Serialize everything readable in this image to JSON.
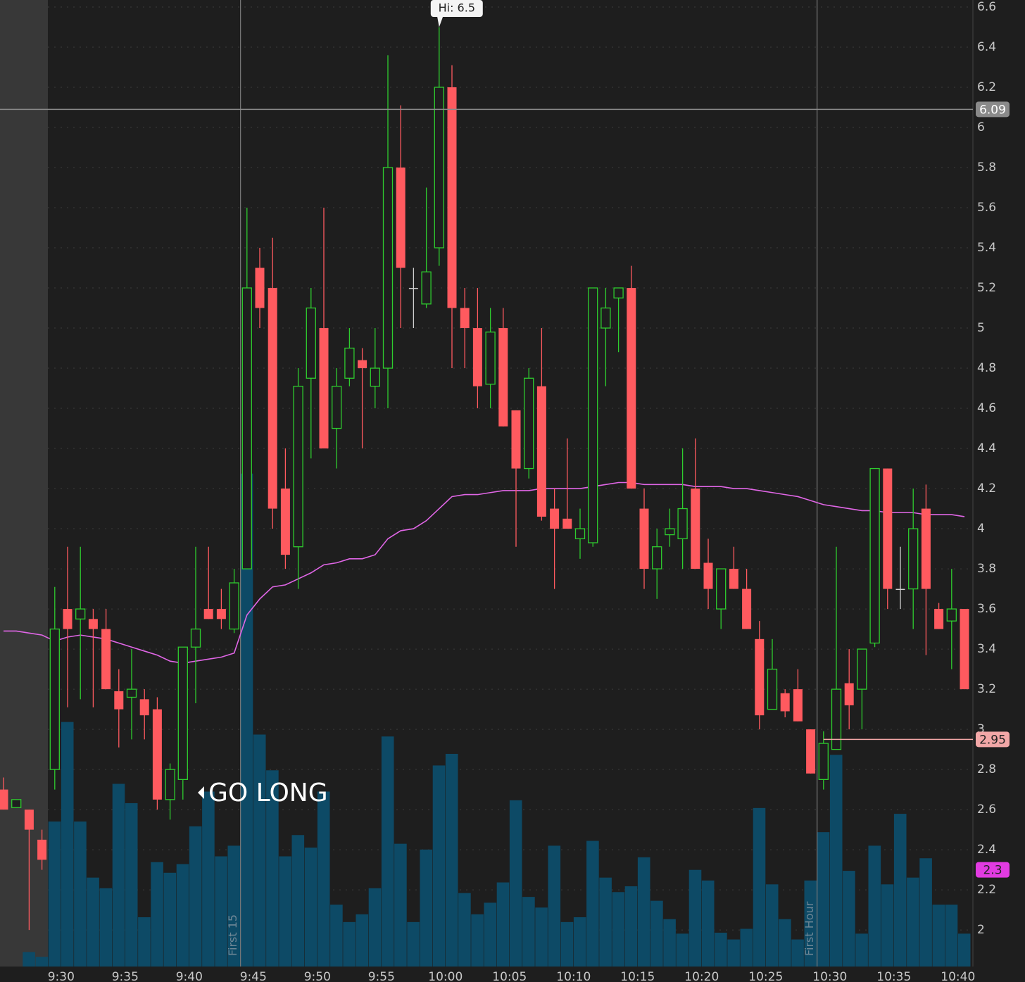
{
  "chart_data": {
    "type": "candlestick",
    "categories": [
      null,
      null,
      null,
      null,
      "9:30",
      null,
      null,
      null,
      null,
      "9:35",
      null,
      null,
      null,
      null,
      "9:40",
      null,
      null,
      null,
      null,
      "9:45",
      null,
      null,
      null,
      null,
      "9:50",
      null,
      null,
      null,
      null,
      "9:55",
      null,
      null,
      null,
      null,
      "10:00",
      null,
      null,
      null,
      null,
      "10:05",
      null,
      null,
      null,
      null,
      "10:10",
      null,
      null,
      null,
      null,
      "10:15",
      null,
      null,
      null,
      null,
      "10:20",
      null,
      null,
      null,
      null,
      "10:25",
      null,
      null,
      null,
      null,
      "10:30",
      null,
      null,
      null,
      null,
      "10:35",
      null,
      null,
      null,
      null,
      "10:40",
      null
    ],
    "open": [
      2.7,
      2.61,
      2.6,
      2.45,
      2.8,
      3.6,
      3.55,
      3.55,
      3.5,
      3.19,
      3.16,
      3.15,
      3.1,
      2.65,
      2.75,
      3.41,
      3.6,
      3.6,
      3.5,
      3.8,
      5.3,
      5.2,
      4.2,
      3.91,
      4.75,
      5.0,
      4.5,
      4.75,
      4.84,
      4.71,
      4.8,
      5.8,
      5.2,
      5.12,
      5.4,
      6.2,
      5.1,
      5.0,
      4.72,
      5.0,
      4.59,
      4.3,
      4.71,
      4.1,
      4.05,
      3.95,
      3.93,
      5.0,
      5.15,
      5.2,
      4.1,
      3.8,
      3.97,
      3.95,
      4.2,
      3.83,
      3.6,
      3.8,
      3.7,
      3.45,
      3.1,
      3.18,
      3.2,
      3.0,
      2.75,
      2.9,
      3.23,
      3.2,
      3.43,
      4.3,
      3.7,
      3.7,
      4.1,
      3.6,
      3.54,
      3.6
    ],
    "high": [
      2.76,
      2.65,
      2.6,
      2.5,
      3.71,
      3.91,
      3.91,
      3.6,
      3.6,
      3.3,
      3.4,
      3.2,
      3.16,
      2.83,
      3.41,
      3.91,
      3.91,
      3.7,
      3.8,
      5.6,
      5.4,
      5.45,
      4.4,
      4.8,
      5.2,
      5.6,
      4.8,
      5.0,
      4.9,
      5.0,
      6.36,
      6.11,
      5.3,
      5.7,
      6.5,
      6.31,
      5.2,
      5.2,
      5.1,
      5.1,
      4.59,
      4.8,
      5.0,
      4.2,
      4.45,
      4.1,
      5.2,
      5.2,
      5.2,
      5.31,
      4.2,
      4.0,
      4.1,
      4.4,
      4.45,
      3.95,
      3.8,
      3.91,
      3.8,
      3.54,
      3.45,
      3.2,
      3.3,
      3.0,
      2.99,
      3.91,
      3.4,
      3.4,
      4.3,
      4.3,
      3.91,
      4.2,
      4.22,
      3.63,
      3.8,
      3.6
    ],
    "low": [
      2.6,
      2.61,
      2.0,
      2.3,
      2.7,
      3.11,
      3.15,
      3.11,
      3.2,
      2.91,
      2.95,
      2.95,
      2.6,
      2.55,
      2.65,
      3.13,
      3.55,
      3.5,
      3.48,
      3.8,
      5.0,
      4.0,
      3.8,
      3.7,
      4.35,
      4.4,
      4.3,
      4.71,
      4.4,
      4.6,
      4.6,
      5.0,
      5.0,
      5.1,
      5.31,
      4.8,
      4.8,
      4.6,
      4.6,
      4.51,
      3.91,
      4.25,
      4.04,
      3.7,
      4.0,
      3.85,
      3.91,
      4.71,
      4.88,
      4.2,
      3.7,
      3.65,
      3.91,
      3.8,
      3.8,
      3.6,
      3.5,
      3.7,
      3.5,
      3.0,
      3.1,
      3.06,
      3.04,
      2.78,
      2.7,
      2.9,
      3.0,
      3.0,
      3.41,
      3.6,
      3.6,
      3.5,
      3.37,
      3.5,
      3.3,
      3.2
    ],
    "close": [
      2.6,
      2.65,
      2.5,
      2.35,
      3.5,
      3.5,
      3.6,
      3.5,
      3.2,
      3.1,
      3.2,
      3.07,
      2.65,
      2.8,
      3.41,
      3.5,
      3.55,
      3.55,
      3.73,
      5.2,
      5.1,
      4.1,
      3.87,
      4.71,
      5.1,
      4.4,
      4.71,
      4.9,
      4.8,
      4.8,
      5.8,
      5.3,
      5.2,
      5.28,
      6.2,
      5.1,
      5.0,
      4.71,
      4.98,
      4.51,
      4.3,
      4.75,
      4.06,
      4.0,
      4.0,
      4.0,
      5.2,
      5.1,
      5.2,
      4.2,
      3.8,
      3.91,
      4.0,
      4.1,
      3.8,
      3.7,
      3.8,
      3.7,
      3.5,
      3.07,
      3.3,
      3.09,
      3.04,
      2.78,
      2.93,
      3.2,
      3.12,
      3.4,
      4.3,
      3.7,
      3.7,
      4.0,
      3.7,
      3.5,
      3.6,
      3.2
    ],
    "vwap": [
      3.49,
      3.49,
      3.48,
      3.47,
      3.44,
      3.46,
      3.47,
      3.46,
      3.45,
      3.43,
      3.41,
      3.39,
      3.37,
      3.34,
      3.33,
      3.34,
      3.35,
      3.36,
      3.38,
      3.57,
      3.65,
      3.71,
      3.72,
      3.75,
      3.78,
      3.82,
      3.83,
      3.85,
      3.85,
      3.87,
      3.95,
      3.99,
      4.0,
      4.04,
      4.1,
      4.16,
      4.17,
      4.17,
      4.18,
      4.19,
      4.19,
      4.19,
      4.2,
      4.2,
      4.2,
      4.2,
      4.21,
      4.22,
      4.23,
      4.23,
      4.22,
      4.22,
      4.22,
      4.22,
      4.21,
      4.21,
      4.21,
      4.2,
      4.2,
      4.19,
      4.18,
      4.17,
      4.16,
      4.14,
      4.12,
      4.11,
      4.1,
      4.09,
      4.09,
      4.08,
      4.08,
      4.08,
      4.07,
      4.07,
      4.07,
      4.06
    ],
    "volume": [
      0,
      0,
      1.5,
      1.0,
      15.0,
      25.3,
      15.0,
      9.2,
      8.1,
      18.9,
      16.9,
      5.1,
      10.8,
      9.7,
      10.6,
      14.5,
      18.1,
      11.4,
      12.5,
      51.0,
      24.0,
      20.3,
      11.4,
      13.6,
      12.3,
      18.1,
      6.4,
      4.6,
      5.4,
      8.1,
      23.8,
      12.7,
      4.6,
      12.1,
      20.8,
      22.0,
      7.6,
      5.4,
      6.6,
      8.7,
      17.2,
      7.2,
      6.1,
      12.5,
      4.6,
      5.1,
      13.0,
      9.2,
      7.7,
      8.3,
      11.3,
      6.8,
      4.9,
      3.4,
      10.0,
      8.9,
      3.5,
      2.8,
      3.9,
      16.4,
      8.5,
      4.9,
      2.8,
      8.9,
      13.9,
      21.9,
      9.9,
      3.4,
      12.5,
      8.5,
      15.8,
      9.2,
      11.2,
      6.4,
      6.4,
      3.4
    ],
    "volume_lim": [
      0,
      100
    ],
    "up_color": "#2ecc2e",
    "down_color": "#ff5a5f",
    "flat_color": "#cfcfcf",
    "vwap_color": "#e066e6",
    "volume_color": "#0d4a66",
    "ylim": [
      1.818,
      6.635
    ],
    "yticks": [
      2,
      2.2,
      2.4,
      2.6,
      2.8,
      3,
      3.2,
      3.4,
      3.6,
      3.8,
      4,
      4.2,
      4.4,
      4.6,
      4.8,
      5,
      5.2,
      5.4,
      5.6,
      5.8,
      6,
      6.2,
      6.4,
      6.6
    ],
    "grid": true,
    "high_marker": {
      "label": "Hi: 6.5",
      "value": 6.5
    },
    "price_lines": [
      {
        "value": 6.09,
        "color": "#8a8a8a",
        "from": "full"
      },
      {
        "value": 2.95,
        "color": "#f2a7a7",
        "from": "10:30"
      }
    ],
    "price_tags": [
      {
        "value": 2.3,
        "color": "#e23be2"
      }
    ],
    "session_markers": [
      {
        "label": "First 15",
        "time": "9:45"
      },
      {
        "label": "First Hour",
        "time": "10:30"
      }
    ],
    "annotation": "GO LONG"
  }
}
